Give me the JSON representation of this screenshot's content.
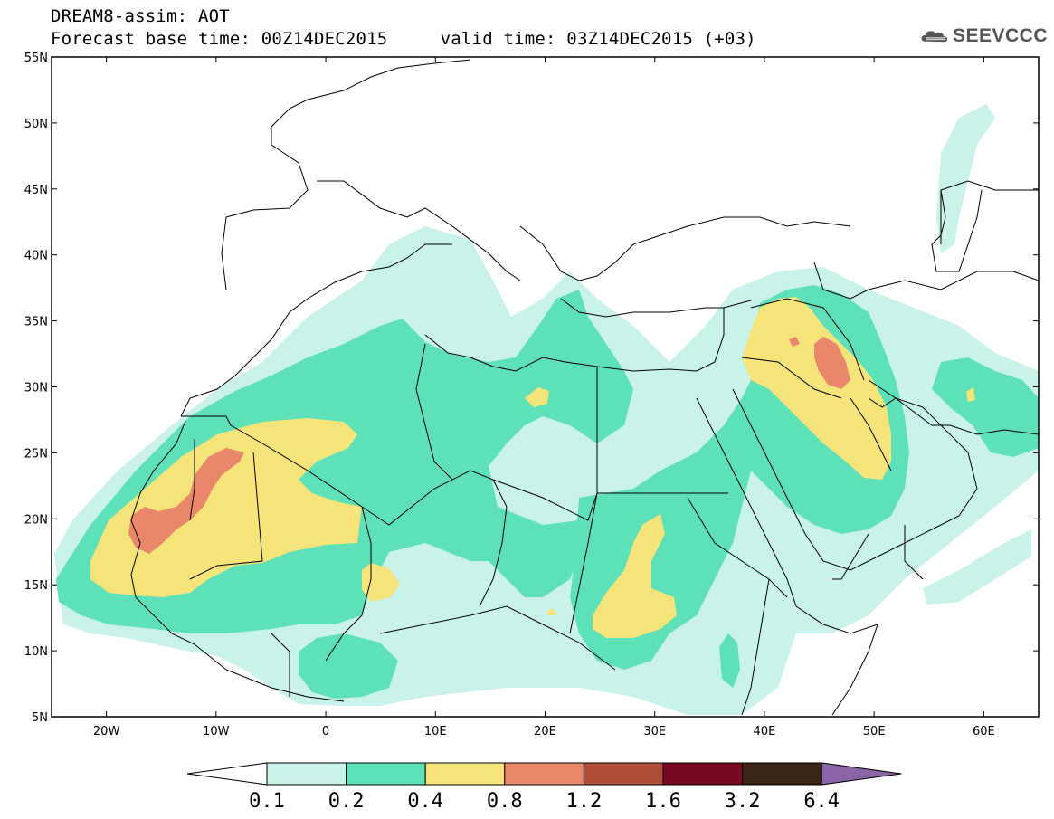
{
  "header": {
    "title_line1": "DREAM8-assim: AOT",
    "title_line2": "Forecast base time: 00Z14DEC2015     valid time: 03Z14DEC2015 (+03)",
    "logo_text": "SEEVCCC"
  },
  "map": {
    "lon_range": [
      -25,
      65
    ],
    "lat_range": [
      5,
      55
    ],
    "lat_labels": [
      "5N",
      "10N",
      "15N",
      "20N",
      "25N",
      "30N",
      "35N",
      "40N",
      "45N",
      "50N",
      "55N"
    ],
    "lat_values": [
      5,
      10,
      15,
      20,
      25,
      30,
      35,
      40,
      45,
      50,
      55
    ],
    "lon_labels": [
      "20W",
      "10W",
      "0",
      "10E",
      "20E",
      "30E",
      "40E",
      "50E",
      "60E"
    ],
    "lon_values": [
      -20,
      -10,
      0,
      10,
      20,
      30,
      40,
      50,
      60
    ]
  },
  "colorbar": {
    "labels": [
      "0.1",
      "0.2",
      "0.4",
      "0.8",
      "1.2",
      "1.6",
      "3.2",
      "6.4"
    ],
    "colors": [
      "#ffffff",
      "#c8f2ea",
      "#5ee0b8",
      "#f5e47a",
      "#e8876a",
      "#b04e3c",
      "#7a0a22",
      "#3a2616",
      "#8a66a6"
    ]
  },
  "fields": {
    "levels": [
      "0.1-0.2",
      "0.2-0.4",
      "0.4-0.8",
      "0.8-1.2"
    ]
  }
}
